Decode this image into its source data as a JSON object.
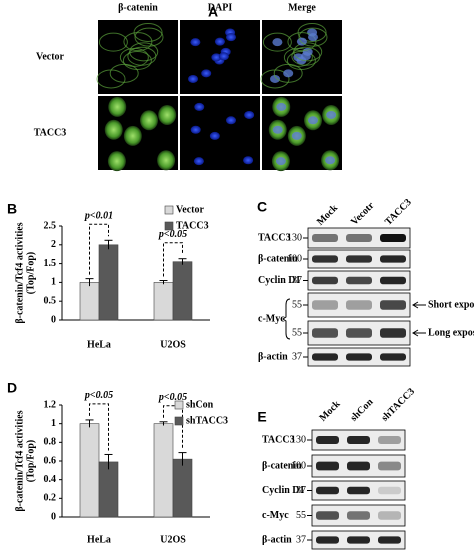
{
  "panel_a": {
    "label": "A",
    "columns": [
      "β-catenin",
      "DAPI",
      "Merge"
    ],
    "rows": [
      "Vector",
      "TACC3"
    ]
  },
  "chart_data": [
    {
      "type": "bar",
      "label": "B",
      "y_label": [
        "β-catenin/Tcf4 activities",
        "(Top/Fop)"
      ],
      "categories": [
        "HeLa",
        "U2OS"
      ],
      "series": [
        {
          "name": "Vector",
          "color": "#d9d9d9",
          "values": [
            1.0,
            1.0
          ],
          "errors": [
            0.1,
            0.05
          ]
        },
        {
          "name": "TACC3",
          "color": "#595959",
          "values": [
            2.0,
            1.55
          ],
          "errors": [
            0.12,
            0.08
          ]
        }
      ],
      "annotations": [
        "p<0.01",
        "p<0.05"
      ],
      "ylim": [
        0,
        2.5
      ],
      "yticks": [
        0,
        0.5,
        1,
        1.5,
        2,
        2.5
      ]
    },
    {
      "type": "bar",
      "label": "D",
      "y_label": [
        "β-catenin/Tcf4 activities",
        "(Top/Fop)"
      ],
      "categories": [
        "HeLa",
        "U2OS"
      ],
      "series": [
        {
          "name": "shCon",
          "color": "#d9d9d9",
          "values": [
            1.0,
            1.0
          ],
          "errors": [
            0.04,
            0.02
          ]
        },
        {
          "name": "shTACC3",
          "color": "#595959",
          "values": [
            0.59,
            0.62
          ],
          "errors": [
            0.08,
            0.07
          ]
        }
      ],
      "annotations": [
        "p<0.05",
        "p<0.05"
      ],
      "ylim": [
        0,
        1.2
      ],
      "yticks": [
        0,
        0.2,
        0.4,
        0.6,
        0.8,
        1,
        1.2
      ]
    }
  ],
  "panel_c": {
    "label": "C",
    "lanes": [
      "Mock",
      "Vecotr",
      "TACC3"
    ],
    "blots": [
      {
        "name": "TACC3",
        "marker": 130
      },
      {
        "name": "β-catenin",
        "marker": 100
      },
      {
        "name": "Cyclin D1",
        "marker": 37
      },
      {
        "marker": 55,
        "note": "Short exposure"
      },
      {
        "marker": 55,
        "note": "Long exposure"
      },
      {
        "name": "β-actin",
        "marker": 37
      }
    ],
    "group": "c-Myc"
  },
  "panel_e": {
    "label": "E",
    "lanes": [
      "Mock",
      "shCon",
      "shTACC3"
    ],
    "blots": [
      {
        "name": "TACC3",
        "marker": 130
      },
      {
        "name": "β-catenin",
        "marker": 100
      },
      {
        "name": "Cyclin D1",
        "marker": 37
      },
      {
        "name": "c-Myc",
        "marker": 55
      },
      {
        "name": "β-actin",
        "marker": 37
      }
    ]
  }
}
